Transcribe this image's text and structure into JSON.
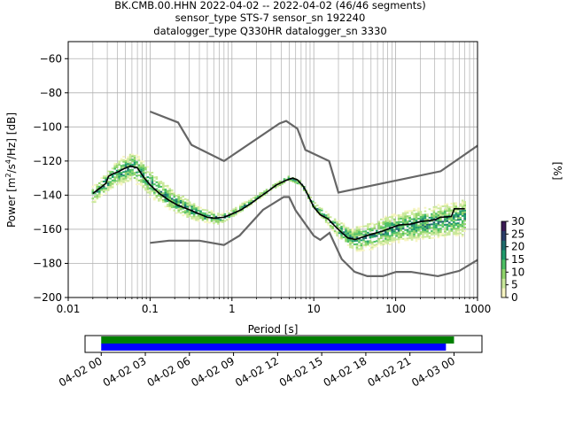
{
  "chart_data": {
    "type": "heatmap",
    "title_lines": [
      "BK.CMB.00.HHN   2022-04-02 -- 2022-04-02  (46/46 segments)",
      "sensor_type STS-7 sensor_sn 192240",
      "datalogger_type Q330HR datalogger_sn 3330"
    ],
    "xlabel": "Period [s]",
    "ylabel": "Power [$m^2/s^4/Hz$] [dB]",
    "ylabel_parts": {
      "pre": "Power [m",
      "sup1": "2",
      "mid": "/s",
      "sup2": "4",
      "post": "/Hz] [dB]"
    },
    "x_scale": "log",
    "xlim": [
      0.01,
      1000
    ],
    "ylim": [
      -200,
      -50
    ],
    "x_ticks": [
      {
        "value": 0.01,
        "label": "0.01"
      },
      {
        "value": 0.1,
        "label": "0.1"
      },
      {
        "value": 1,
        "label": "1"
      },
      {
        "value": 10,
        "label": "10"
      },
      {
        "value": 100,
        "label": "100"
      },
      {
        "value": 1000,
        "label": "1000"
      }
    ],
    "y_ticks": [
      {
        "value": -60,
        "label": "−60"
      },
      {
        "value": -80,
        "label": "−80"
      },
      {
        "value": -100,
        "label": "−100"
      },
      {
        "value": -120,
        "label": "−120"
      },
      {
        "value": -140,
        "label": "−140"
      },
      {
        "value": -160,
        "label": "−160"
      },
      {
        "value": -180,
        "label": "−180"
      },
      {
        "value": -200,
        "label": "−200"
      }
    ],
    "grid": true,
    "colorbar": {
      "label": "[%]",
      "range": [
        0,
        30
      ],
      "ticks": [
        {
          "value": 0,
          "label": "0"
        },
        {
          "value": 5,
          "label": "5"
        },
        {
          "value": 10,
          "label": "10"
        },
        {
          "value": 15,
          "label": "15"
        },
        {
          "value": 20,
          "label": "20"
        },
        {
          "value": 25,
          "label": "25"
        },
        {
          "value": 30,
          "label": "30"
        }
      ],
      "colors": [
        "#f7f5c2",
        "#c9e89a",
        "#8fd46a",
        "#4cbf63",
        "#1f9a6b",
        "#1d6b6c",
        "#2a3d69",
        "#3b1a55"
      ]
    },
    "noise_model_color": "#666666",
    "mode_color": "#000000",
    "high_noise_model": [
      [
        0.1,
        -91
      ],
      [
        0.22,
        -97.4
      ],
      [
        0.32,
        -110.5
      ],
      [
        0.8,
        -120
      ],
      [
        3.8,
        -98
      ],
      [
        4.6,
        -96.5
      ],
      [
        6.3,
        -101
      ],
      [
        7.9,
        -113.5
      ],
      [
        15.4,
        -120
      ],
      [
        20,
        -138.5
      ],
      [
        354.8,
        -126
      ],
      [
        1000,
        -111
      ]
    ],
    "low_noise_model": [
      [
        0.1,
        -168
      ],
      [
        0.17,
        -166.7
      ],
      [
        0.4,
        -166.7
      ],
      [
        0.8,
        -169.2
      ],
      [
        1.24,
        -163.7
      ],
      [
        2.4,
        -148.6
      ],
      [
        4.3,
        -141.1
      ],
      [
        5,
        -141.1
      ],
      [
        6,
        -149
      ],
      [
        10,
        -163.8
      ],
      [
        12,
        -166.2
      ],
      [
        15.6,
        -162.1
      ],
      [
        21.9,
        -177.5
      ],
      [
        31.6,
        -185
      ],
      [
        45,
        -187.5
      ],
      [
        70,
        -187.5
      ],
      [
        101,
        -185
      ],
      [
        154,
        -185
      ],
      [
        328,
        -187.5
      ],
      [
        600,
        -184.4
      ],
      [
        1000,
        -178
      ]
    ],
    "mode": [
      [
        0.02,
        -139
      ],
      [
        0.025,
        -135.5
      ],
      [
        0.029,
        -133
      ],
      [
        0.031,
        -129
      ],
      [
        0.035,
        -127.5
      ],
      [
        0.04,
        -126.5
      ],
      [
        0.048,
        -124.5
      ],
      [
        0.058,
        -123
      ],
      [
        0.07,
        -124
      ],
      [
        0.085,
        -130
      ],
      [
        0.1,
        -134
      ],
      [
        0.13,
        -139
      ],
      [
        0.17,
        -143
      ],
      [
        0.22,
        -146
      ],
      [
        0.3,
        -148.5
      ],
      [
        0.4,
        -151
      ],
      [
        0.5,
        -153
      ],
      [
        0.6,
        -153.5
      ],
      [
        0.8,
        -153
      ],
      [
        1,
        -151
      ],
      [
        1.3,
        -148.5
      ],
      [
        1.7,
        -145
      ],
      [
        2.2,
        -141
      ],
      [
        2.8,
        -137.5
      ],
      [
        3.5,
        -134
      ],
      [
        4.5,
        -131.5
      ],
      [
        5.5,
        -130
      ],
      [
        6.3,
        -131
      ],
      [
        7.5,
        -135
      ],
      [
        8.5,
        -140
      ],
      [
        10,
        -147
      ],
      [
        12,
        -151.5
      ],
      [
        15,
        -154
      ],
      [
        18,
        -158
      ],
      [
        22,
        -162
      ],
      [
        26,
        -165
      ],
      [
        32,
        -166
      ],
      [
        40,
        -164.5
      ],
      [
        50,
        -163
      ],
      [
        70,
        -161
      ],
      [
        90,
        -159
      ],
      [
        110,
        -157.5
      ],
      [
        150,
        -157
      ],
      [
        200,
        -155.5
      ],
      [
        300,
        -154.5
      ],
      [
        350,
        -153
      ],
      [
        480,
        -152.5
      ],
      [
        520,
        -148
      ],
      [
        700,
        -148
      ]
    ],
    "pdf_band": {
      "center": [
        [
          0.02,
          -140
        ],
        [
          0.03,
          -132
        ],
        [
          0.04,
          -127
        ],
        [
          0.06,
          -123
        ],
        [
          0.08,
          -127
        ],
        [
          0.1,
          -133
        ],
        [
          0.2,
          -144
        ],
        [
          0.4,
          -151
        ],
        [
          0.7,
          -154
        ],
        [
          1,
          -151
        ],
        [
          2,
          -142
        ],
        [
          3,
          -136
        ],
        [
          5,
          -130
        ],
        [
          7,
          -133
        ],
        [
          10,
          -146
        ],
        [
          20,
          -160
        ],
        [
          30,
          -166
        ],
        [
          50,
          -164
        ],
        [
          100,
          -159
        ],
        [
          200,
          -157
        ],
        [
          400,
          -155
        ],
        [
          700,
          -153
        ]
      ],
      "half_width_db": [
        [
          0.02,
          6
        ],
        [
          0.06,
          10
        ],
        [
          0.1,
          9
        ],
        [
          0.3,
          6
        ],
        [
          1,
          3
        ],
        [
          3,
          2
        ],
        [
          8,
          2
        ],
        [
          15,
          4
        ],
        [
          30,
          8
        ],
        [
          100,
          10
        ],
        [
          700,
          12
        ]
      ]
    },
    "availability": {
      "time_ticks": [
        "04-02 00",
        "04-02 03",
        "04-02 06",
        "04-02 09",
        "04-02 12",
        "04-02 15",
        "04-02 18",
        "04-02 21",
        "04-03 00"
      ],
      "time_range_hours": [
        -1.1,
        25.9
      ],
      "bars": [
        {
          "color": "#008000",
          "start_hour": 0,
          "end_hour": 24.0
        },
        {
          "color": "#0000ff",
          "start_hour": 0,
          "end_hour": 23.45
        }
      ]
    }
  }
}
